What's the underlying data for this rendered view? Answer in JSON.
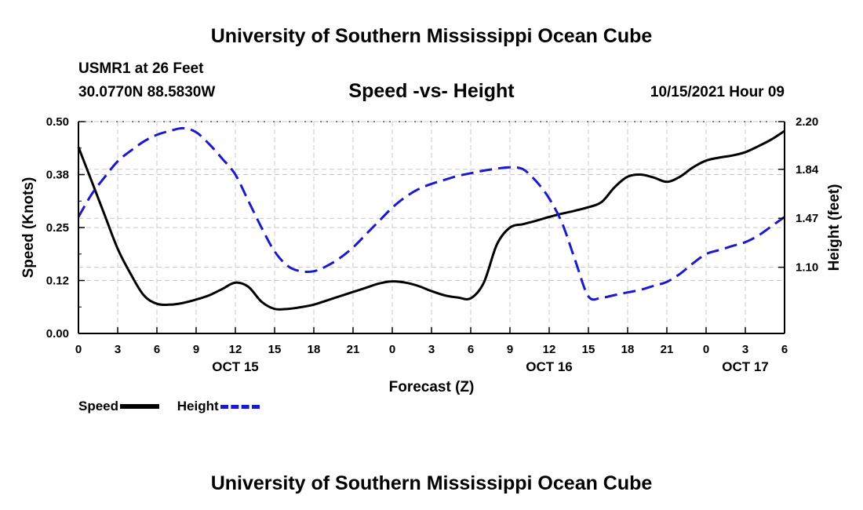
{
  "header": {
    "title": "University of Southern Mississippi Ocean Cube",
    "station": "USMR1 at 26 Feet",
    "coords": "30.0770N  88.5830W",
    "timestamp": "10/15/2021 Hour 09"
  },
  "footer": {
    "title": "University of Southern Mississippi Ocean Cube"
  },
  "chart_data": {
    "type": "line",
    "title": "Speed -vs- Height",
    "xlabel": "Forecast (Z)",
    "ylabel_left": "Speed (Knots)",
    "ylabel_right": "Height (feet)",
    "grid": true,
    "x_range": [
      0,
      54
    ],
    "x_ticks": [
      {
        "x": 0,
        "label": "0"
      },
      {
        "x": 3,
        "label": "3"
      },
      {
        "x": 6,
        "label": "6"
      },
      {
        "x": 9,
        "label": "9"
      },
      {
        "x": 12,
        "label": "12"
      },
      {
        "x": 15,
        "label": "15"
      },
      {
        "x": 18,
        "label": "18"
      },
      {
        "x": 21,
        "label": "21"
      },
      {
        "x": 24,
        "label": "0"
      },
      {
        "x": 27,
        "label": "3"
      },
      {
        "x": 30,
        "label": "6"
      },
      {
        "x": 33,
        "label": "9"
      },
      {
        "x": 36,
        "label": "12"
      },
      {
        "x": 39,
        "label": "15"
      },
      {
        "x": 42,
        "label": "18"
      },
      {
        "x": 45,
        "label": "21"
      },
      {
        "x": 48,
        "label": "0"
      },
      {
        "x": 51,
        "label": "3"
      },
      {
        "x": 54,
        "label": "6"
      }
    ],
    "date_labels": [
      {
        "x": 12,
        "label": "OCT 15"
      },
      {
        "x": 36,
        "label": "OCT 16"
      },
      {
        "x": 51,
        "label": "OCT 17"
      }
    ],
    "y_left": {
      "range": [
        0,
        0.5
      ],
      "ticks": [
        "0.00",
        "0.12",
        "0.25",
        "0.38",
        "0.50"
      ],
      "tick_values": [
        0,
        0.125,
        0.25,
        0.375,
        0.5
      ]
    },
    "y_right": {
      "range": [
        0.6,
        2.2
      ],
      "ticks": [
        "1.10",
        "1.47",
        "1.84",
        "2.20"
      ],
      "tick_values": [
        1.1,
        1.47,
        1.84,
        2.2
      ]
    },
    "series": [
      {
        "name": "Speed",
        "axis": "left",
        "color": "#000000",
        "dash": "solid",
        "x": [
          0,
          1,
          2,
          3,
          4,
          5,
          6,
          7,
          8,
          9,
          10,
          11,
          12,
          13,
          14,
          15,
          16,
          17,
          18,
          19,
          20,
          21,
          22,
          23,
          24,
          25,
          26,
          27,
          28,
          29,
          30,
          31,
          32,
          33,
          34,
          35,
          36,
          37,
          38,
          39,
          40,
          41,
          42,
          43,
          44,
          45,
          46,
          47,
          48,
          49,
          50,
          51,
          52,
          53,
          54
        ],
        "values": [
          0.44,
          0.36,
          0.28,
          0.2,
          0.14,
          0.09,
          0.07,
          0.068,
          0.072,
          0.08,
          0.09,
          0.105,
          0.12,
          0.11,
          0.075,
          0.058,
          0.058,
          0.062,
          0.068,
          0.078,
          0.088,
          0.098,
          0.108,
          0.118,
          0.123,
          0.12,
          0.112,
          0.1,
          0.09,
          0.085,
          0.083,
          0.12,
          0.21,
          0.25,
          0.258,
          0.266,
          0.275,
          0.283,
          0.29,
          0.298,
          0.31,
          0.345,
          0.37,
          0.375,
          0.368,
          0.358,
          0.37,
          0.392,
          0.408,
          0.415,
          0.42,
          0.428,
          0.442,
          0.458,
          0.478
        ]
      },
      {
        "name": "Height",
        "axis": "right",
        "color": "#1a1acc",
        "dash": "dashed",
        "x": [
          0,
          1,
          2,
          3,
          4,
          5,
          6,
          7,
          8,
          9,
          10,
          11,
          12,
          13,
          14,
          15,
          16,
          17,
          18,
          19,
          20,
          21,
          22,
          23,
          24,
          25,
          26,
          27,
          28,
          29,
          30,
          31,
          32,
          33,
          34,
          35,
          36,
          37,
          38,
          39,
          40,
          41,
          42,
          43,
          44,
          45,
          46,
          47,
          48,
          49,
          50,
          51,
          52,
          53,
          54
        ],
        "values": [
          1.48,
          1.65,
          1.78,
          1.9,
          1.98,
          2.05,
          2.1,
          2.13,
          2.15,
          2.12,
          2.03,
          1.92,
          1.8,
          1.6,
          1.4,
          1.22,
          1.11,
          1.07,
          1.07,
          1.11,
          1.17,
          1.25,
          1.35,
          1.45,
          1.55,
          1.63,
          1.69,
          1.73,
          1.76,
          1.79,
          1.81,
          1.83,
          1.845,
          1.855,
          1.84,
          1.75,
          1.62,
          1.43,
          1.15,
          0.88,
          0.87,
          0.89,
          0.91,
          0.93,
          0.96,
          0.99,
          1.05,
          1.13,
          1.2,
          1.23,
          1.26,
          1.29,
          1.34,
          1.41,
          1.48
        ]
      }
    ],
    "legend": [
      "Speed",
      "Height"
    ]
  }
}
